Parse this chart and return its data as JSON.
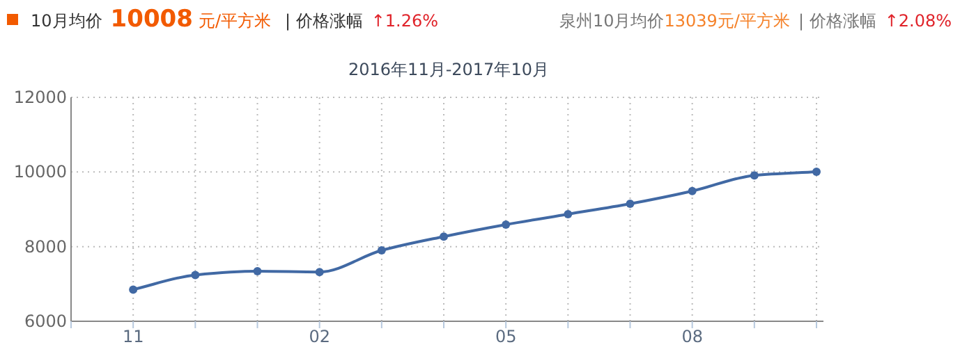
{
  "chart_data": {
    "type": "line",
    "title": "2016年11月-2017年10月",
    "annotations": [
      "10月均价",
      "10008",
      "元/平方米",
      "| 价格涨幅",
      "↑1.26%",
      "泉州10月均价",
      "13039元/平方米",
      "| 价格涨幅",
      "↑2.08%"
    ],
    "categories": [
      "11",
      null,
      null,
      "02",
      null,
      null,
      "05",
      null,
      null,
      "08",
      null,
      null
    ],
    "series": [
      {
        "color": "#4169a4",
        "values": [
          6850,
          7240,
          7340,
          7320,
          7900,
          8270,
          8590,
          8870,
          9150,
          9490,
          9910,
          10008
        ]
      }
    ],
    "ylim": [
      6000,
      12000
    ],
    "yticks": [
      6000,
      8000,
      10000,
      12000
    ],
    "grid": true,
    "marker": "circle",
    "line_style": "solid"
  }
}
